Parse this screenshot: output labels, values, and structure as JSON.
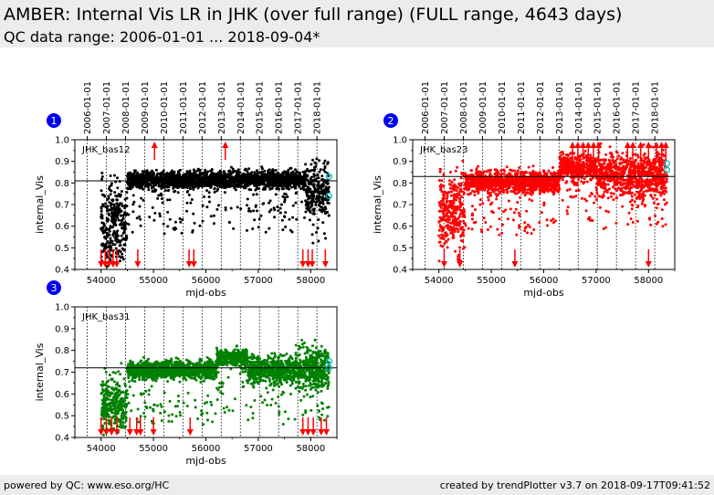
{
  "header": {
    "title": "AMBER: Internal Vis LR in JHK (over full range) (FULL range, 4643 days)",
    "subtitle": "QC data range: 2006-01-01 ... 2018-09-04*"
  },
  "footer": {
    "left": "powered by QC: www.eso.org/HC",
    "right": "created by trendPlotter v3.7 on 2018-09-17T09:41:52"
  },
  "colors": {
    "background": "#ffffff",
    "header_band": "#ececec",
    "badge": "#0000ee",
    "outlier_arrow": "#ff0000",
    "last_point_marker": "#00bfbf"
  },
  "chart_data": [
    {
      "id": "1",
      "type": "scatter",
      "label": "JHK_bas12",
      "xlabel": "mjd-obs",
      "ylabel": "internal_Vis",
      "xlim": [
        53500,
        58500
      ],
      "ylim": [
        0.4,
        1.0
      ],
      "xticks": [
        54000,
        55000,
        56000,
        57000,
        58000
      ],
      "yticks": [
        0.4,
        0.5,
        0.6,
        0.7,
        0.8,
        0.9,
        1.0
      ],
      "top_axis_dates": [
        "2006-01-01",
        "2007-01-01",
        "2008-01-01",
        "2009-01-01",
        "2010-01-01",
        "2011-01-01",
        "2012-01-01",
        "2013-01-01",
        "2014-01-01",
        "2015-01-01",
        "2016-01-01",
        "2017-01-01",
        "2018-01-01"
      ],
      "year_lines": [
        53736,
        54101,
        54466,
        54832,
        55197,
        55562,
        55927,
        56293,
        56658,
        57023,
        57388,
        57754,
        58119
      ],
      "reference_line": 0.81,
      "color": "#000000",
      "data_range": [
        54000,
        58350
      ],
      "segments": [
        {
          "x": [
            54000,
            54500
          ],
          "median": 0.62,
          "spread": 0.1
        },
        {
          "x": [
            54500,
            57900
          ],
          "median": 0.815,
          "spread": 0.02
        },
        {
          "x": [
            57900,
            58350
          ],
          "median": 0.77,
          "spread": 0.06
        }
      ],
      "outliers_low": [
        54000,
        54080,
        54150,
        54230,
        54300,
        54700,
        55680,
        55770,
        57850,
        57950,
        58030,
        58280
      ],
      "outliers_high": [
        55020,
        56370
      ],
      "last_points": [
        0.83,
        0.74
      ]
    },
    {
      "id": "2",
      "type": "scatter",
      "label": "JHK_bas23",
      "xlabel": "mjd-obs",
      "ylabel": "internal_Vis",
      "xlim": [
        53500,
        58500
      ],
      "ylim": [
        0.4,
        1.0
      ],
      "xticks": [
        54000,
        55000,
        56000,
        57000,
        58000
      ],
      "yticks": [
        0.4,
        0.5,
        0.6,
        0.7,
        0.8,
        0.9,
        1.0
      ],
      "top_axis_dates": [
        "2006-01-01",
        "2007-01-01",
        "2008-01-01",
        "2009-01-01",
        "2010-01-01",
        "2011-01-01",
        "2012-01-01",
        "2013-01-01",
        "2014-01-01",
        "2015-01-01",
        "2016-01-01",
        "2017-01-01",
        "2018-01-01"
      ],
      "year_lines": [
        53736,
        54101,
        54466,
        54832,
        55197,
        55562,
        55927,
        56293,
        56658,
        57023,
        57388,
        57754,
        58119
      ],
      "reference_line": 0.83,
      "color": "#ff0000",
      "data_range": [
        54000,
        58350
      ],
      "segments": [
        {
          "x": [
            54000,
            54500
          ],
          "median": 0.68,
          "spread": 0.08
        },
        {
          "x": [
            54500,
            56300
          ],
          "median": 0.805,
          "spread": 0.025
        },
        {
          "x": [
            56300,
            57000
          ],
          "median": 0.875,
          "spread": 0.03
        },
        {
          "x": [
            57000,
            58350
          ],
          "median": 0.835,
          "spread": 0.05
        }
      ],
      "outliers_low": [
        54100,
        54400,
        55450,
        58000
      ],
      "outliers_high": [
        56550,
        56650,
        56750,
        56850,
        56950,
        57050,
        57600,
        57700,
        57850,
        58000,
        58150,
        58250,
        58330
      ],
      "last_points": [
        0.89,
        0.86
      ]
    },
    {
      "id": "3",
      "type": "scatter",
      "label": "JHK_bas31",
      "xlabel": "mjd-obs",
      "ylabel": "internal_Vis",
      "xlim": [
        53500,
        58500
      ],
      "ylim": [
        0.4,
        1.0
      ],
      "xticks": [
        54000,
        55000,
        56000,
        57000,
        58000
      ],
      "yticks": [
        0.4,
        0.5,
        0.6,
        0.7,
        0.8,
        0.9,
        1.0
      ],
      "top_axis_dates": [],
      "year_lines": [
        53736,
        54101,
        54466,
        54832,
        55197,
        55562,
        55927,
        56293,
        56658,
        57023,
        57388,
        57754,
        58119
      ],
      "reference_line": 0.72,
      "color": "#008000",
      "data_range": [
        54000,
        58350
      ],
      "segments": [
        {
          "x": [
            54000,
            54500
          ],
          "median": 0.56,
          "spread": 0.06
        },
        {
          "x": [
            54500,
            56200
          ],
          "median": 0.71,
          "spread": 0.02
        },
        {
          "x": [
            56200,
            56800
          ],
          "median": 0.765,
          "spread": 0.02
        },
        {
          "x": [
            56800,
            57700
          ],
          "median": 0.71,
          "spread": 0.03
        },
        {
          "x": [
            57700,
            58350
          ],
          "median": 0.72,
          "spread": 0.05
        }
      ],
      "outliers_low": [
        54000,
        54100,
        54200,
        54300,
        54550,
        54680,
        54750,
        55000,
        55700,
        57850,
        57950,
        58050,
        58200,
        58300
      ],
      "outliers_high": [],
      "last_points": [
        0.75,
        0.72
      ]
    }
  ]
}
